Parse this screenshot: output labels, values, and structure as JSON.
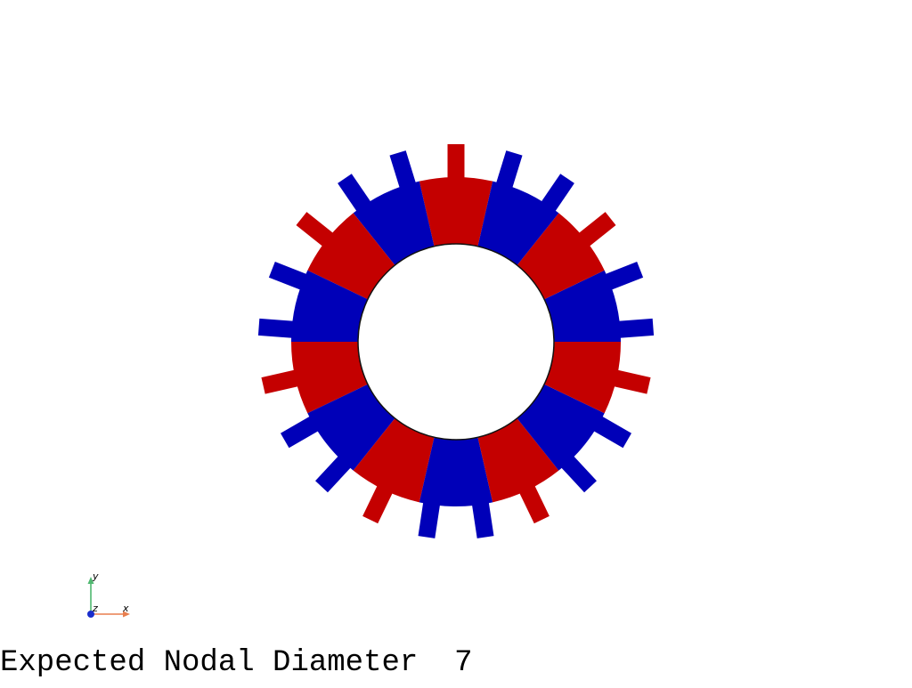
{
  "caption": "Expected Nodal Diameter  7",
  "colors": {
    "positive": "#c40000",
    "negative": "#0000b8",
    "background": "#ffffff",
    "axis_x": "#e87f4f",
    "axis_y": "#4fb870",
    "axis_z": "#1a2ecc"
  },
  "model": {
    "blade_count": 21,
    "segment_count": 14,
    "nodal_diameter": 7
  },
  "axes": {
    "x": "x",
    "y": "y",
    "z": "z"
  }
}
